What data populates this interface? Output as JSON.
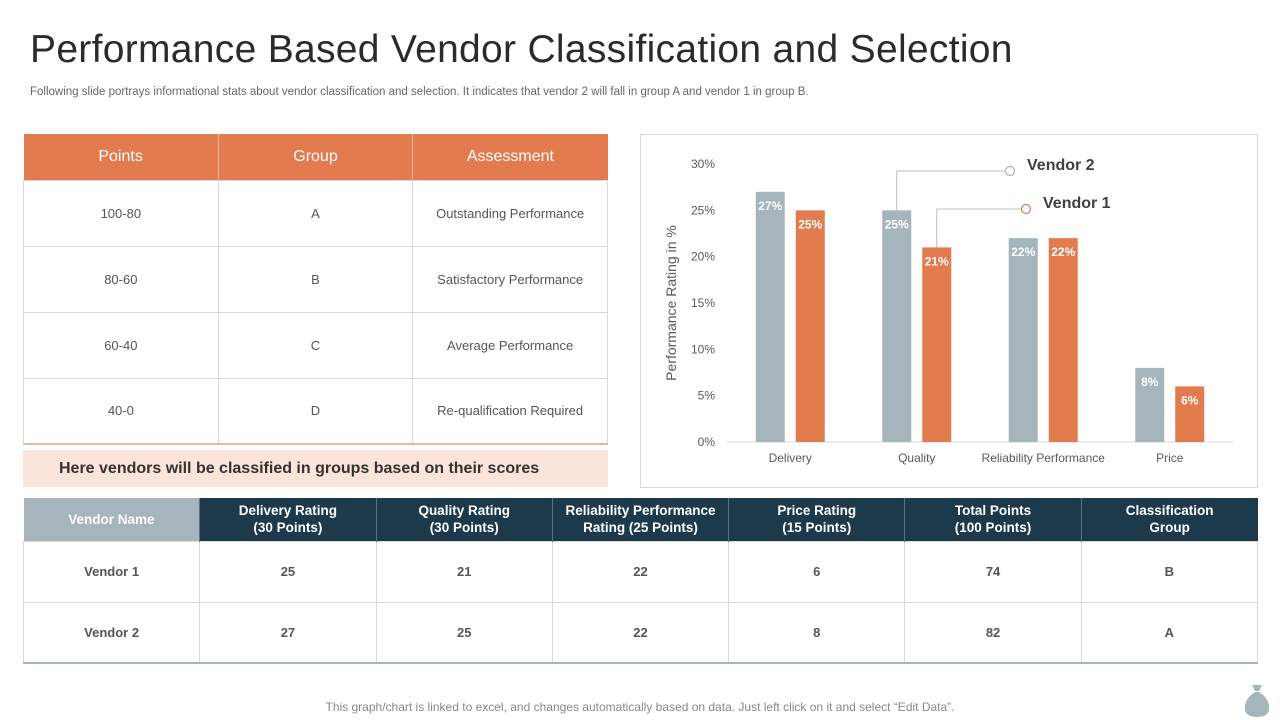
{
  "title": "Performance Based Vendor Classification and Selection",
  "subtitle": "Following slide portrays informational stats about vendor classification and selection. It indicates that vendor 2 will fall in group A and vendor 1 in group B.",
  "points_table": {
    "headers": [
      "Points",
      "Group",
      "Assessment"
    ],
    "rows": [
      [
        "100-80",
        "A",
        "Outstanding Performance"
      ],
      [
        "80-60",
        "B",
        "Satisfactory Performance"
      ],
      [
        "60-40",
        "C",
        "Average  Performance"
      ],
      [
        "40-0",
        "D",
        "Re-qualification  Required"
      ]
    ]
  },
  "note": "Here vendors will be classified in groups based on their scores",
  "chart_data": {
    "type": "bar",
    "title": "",
    "xlabel": "",
    "ylabel": "Performance Rating in %",
    "ylim": [
      0,
      30
    ],
    "yticks": [
      "0%",
      "5%",
      "10%",
      "15%",
      "20%",
      "25%",
      "30%"
    ],
    "ytick_values": [
      0,
      5,
      10,
      15,
      20,
      25,
      30
    ],
    "categories": [
      "Delivery",
      "Quality",
      "Reliability  Performance",
      "Price"
    ],
    "series": [
      {
        "name": "Vendor 2",
        "color": "#a6b4bb",
        "values": [
          27,
          25,
          22,
          8
        ],
        "labels": [
          "27%",
          "25%",
          "22%",
          "8%"
        ]
      },
      {
        "name": "Vendor 1",
        "color": "#e27b4d",
        "values": [
          25,
          21,
          22,
          6
        ],
        "labels": [
          "25%",
          "21%",
          "22%",
          "6%"
        ]
      }
    ],
    "grid": false,
    "legend": "top-right"
  },
  "vendor_table": {
    "headers": [
      [
        "Vendor Name"
      ],
      [
        "Delivery Rating",
        "(30 Points)"
      ],
      [
        "Quality Rating",
        "(30 Points)"
      ],
      [
        "Reliability Performance",
        "Rating (25 Points)"
      ],
      [
        "Price Rating",
        "(15 Points)"
      ],
      [
        "Total Points",
        "(100 Points)"
      ],
      [
        "Classification",
        "Group"
      ]
    ],
    "rows": [
      [
        "Vendor 1",
        "25",
        "21",
        "22",
        "6",
        "74",
        "B"
      ],
      [
        "Vendor 2",
        "27",
        "25",
        "22",
        "8",
        "82",
        "A"
      ]
    ]
  },
  "footer": "This graph/chart is linked to excel, and changes automatically based on data. Just left click on it and select “Edit Data”.",
  "icons": {
    "bag": "money-bag-icon"
  }
}
